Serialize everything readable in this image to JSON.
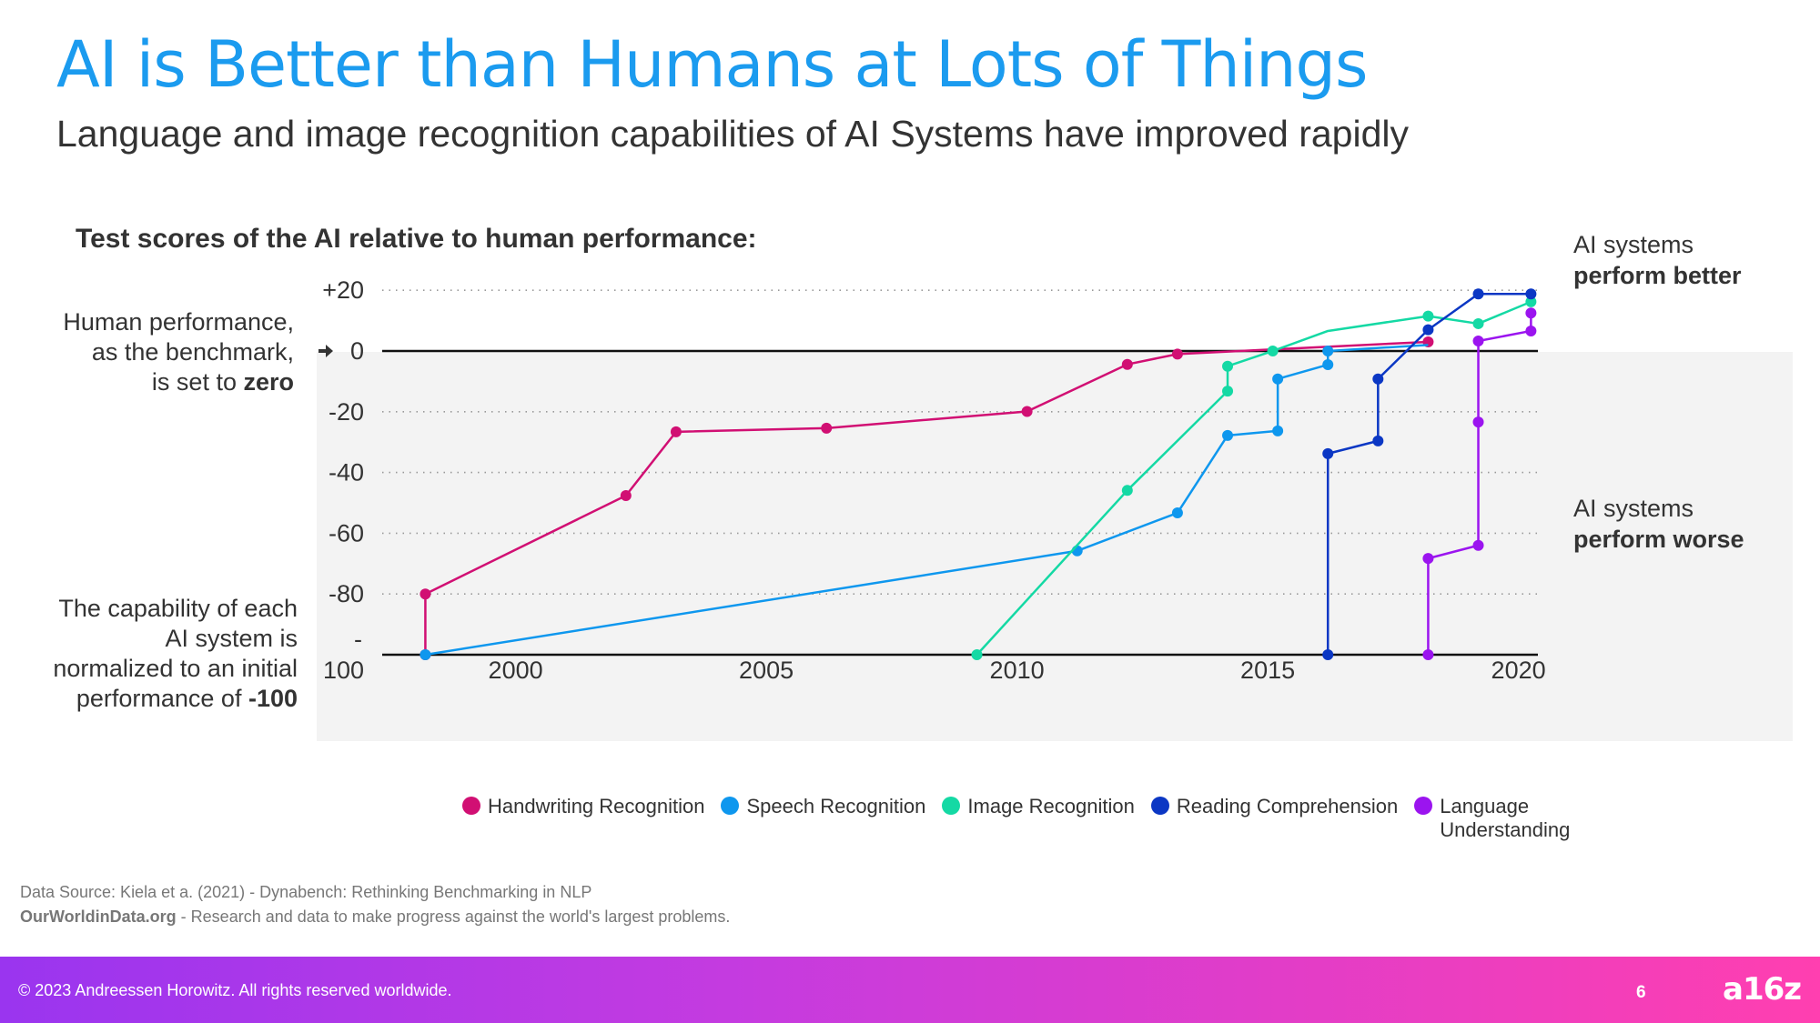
{
  "title": "AI is Better than Humans at Lots of Things",
  "subtitle": "Language and image recognition capabilities of AI Systems have improved rapidly",
  "notes": {
    "benchmark": [
      "Human performance,",
      "as the benchmark,",
      "is set to "
    ],
    "benchmark_bold": "zero",
    "normalized": [
      "The capability of each",
      "AI system is",
      "normalized to an initial",
      "performance of "
    ],
    "normalized_bold": "-100",
    "better": "AI systems",
    "better_bold": "perform better",
    "worse": "AI systems",
    "worse_bold": "perform worse"
  },
  "source": {
    "line1": "Data Source: Kiela et a. (2021) - Dynabench: Rethinking Benchmarking in NLP",
    "owid_bold": "OurWorldinData.org",
    "line2": " - Research and data to make progress against the world's largest problems."
  },
  "footer": {
    "copyright": "© 2023 Andreessen Horowitz. All rights reserved worldwide.",
    "page": "6",
    "logo": "a16z"
  },
  "chart_data": {
    "type": "line",
    "title": "Test scores of the AI relative to human performance:",
    "xlim": [
      1997.2,
      2020.6
    ],
    "ylim": [
      -100,
      20
    ],
    "x_ticks": [
      2000,
      2005,
      2010,
      2015,
      2020
    ],
    "x_tick_labels": [
      "2000",
      "2005",
      "2010",
      "2015",
      "2020"
    ],
    "y_ticks": [
      20,
      0,
      -20,
      -40,
      -60,
      -80,
      -100
    ],
    "y_tick_labels": [
      "+20",
      "0",
      "-20",
      "-40",
      "-60",
      "-80",
      "-\n100"
    ],
    "grid": "dotted horizontal",
    "legend_position": "bottom",
    "series": [
      {
        "name": "Handwriting Recognition",
        "color": "#d10f73",
        "points": [
          [
            1998.2,
            -100
          ],
          [
            1998.2,
            -80
          ],
          [
            2002.2,
            -47.6
          ],
          [
            2003.2,
            -26.6
          ],
          [
            2006.2,
            -25.4
          ],
          [
            2010.2,
            -19.9
          ],
          [
            2012.2,
            -4.4
          ],
          [
            2013.2,
            -1.0
          ],
          [
            2018.2,
            3.0
          ]
        ]
      },
      {
        "name": "Speech Recognition",
        "color": "#0e97ee",
        "points": [
          [
            1998.2,
            -100
          ],
          [
            2011.2,
            -65.8
          ],
          [
            2013.2,
            -53.3
          ],
          [
            2014.2,
            -27.8
          ],
          [
            2015.2,
            -26.3
          ],
          [
            2015.2,
            -9.2
          ],
          [
            2016.2,
            -4.5
          ],
          [
            2016.2,
            0
          ],
          [
            2018.2,
            2.0
          ]
        ],
        "unmarked": [
          8
        ]
      },
      {
        "name": "Image Recognition",
        "color": "#14d9a4",
        "points": [
          [
            2009.2,
            -100
          ],
          [
            2012.2,
            -45.9
          ],
          [
            2014.2,
            -13.2
          ],
          [
            2014.2,
            -5.0
          ],
          [
            2015.1,
            0
          ],
          [
            2016.2,
            6.6
          ],
          [
            2018.2,
            11.5
          ],
          [
            2019.2,
            9.0
          ],
          [
            2020.25,
            16.2
          ]
        ],
        "unmarked": [
          5
        ]
      },
      {
        "name": "Reading Comprehension",
        "color": "#0b37c4",
        "points": [
          [
            2016.2,
            -100
          ],
          [
            2016.2,
            -33.8
          ],
          [
            2017.2,
            -29.6
          ],
          [
            2017.2,
            -9.2
          ],
          [
            2018.2,
            7.0
          ],
          [
            2019.2,
            18.8
          ],
          [
            2020.25,
            18.8
          ]
        ]
      },
      {
        "name": "Language Understanding",
        "color": "#9b14ef",
        "points": [
          [
            2018.2,
            -100
          ],
          [
            2018.2,
            -68.3
          ],
          [
            2019.2,
            -64.0
          ],
          [
            2019.2,
            -23.4
          ],
          [
            2019.2,
            3.3
          ],
          [
            2020.25,
            6.6
          ],
          [
            2020.25,
            12.5
          ]
        ]
      }
    ]
  }
}
